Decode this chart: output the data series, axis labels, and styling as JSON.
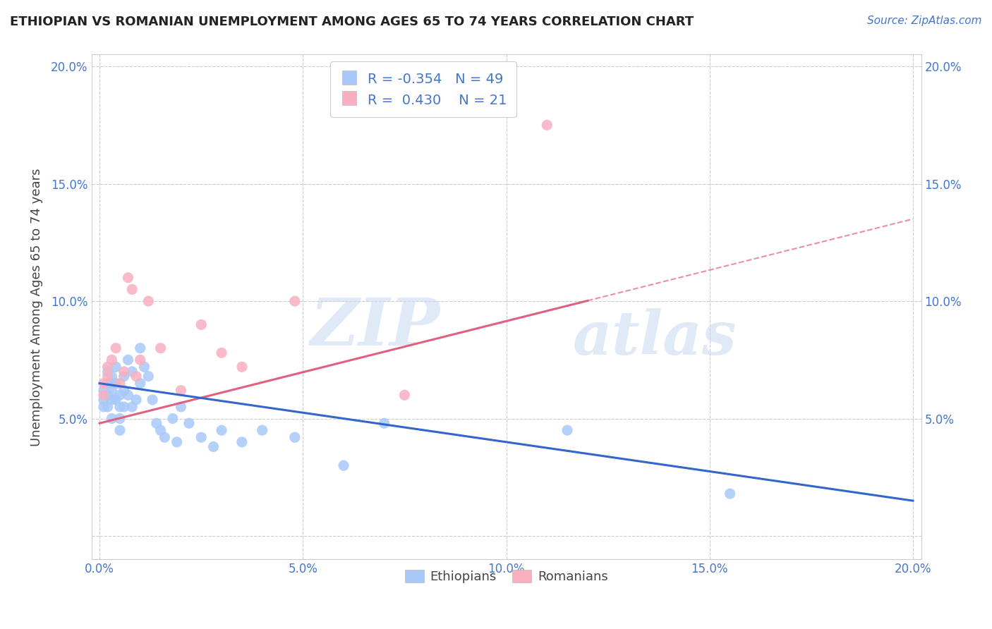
{
  "title": "ETHIOPIAN VS ROMANIAN UNEMPLOYMENT AMONG AGES 65 TO 74 YEARS CORRELATION CHART",
  "source": "Source: ZipAtlas.com",
  "ylabel": "Unemployment Among Ages 65 to 74 years",
  "xlim": [
    -0.002,
    0.202
  ],
  "ylim": [
    -0.01,
    0.205
  ],
  "xticks": [
    0.0,
    0.05,
    0.1,
    0.15,
    0.2
  ],
  "yticks": [
    0.0,
    0.05,
    0.1,
    0.15,
    0.2
  ],
  "xticklabels": [
    "0.0%",
    "5.0%",
    "10.0%",
    "15.0%",
    "20.0%"
  ],
  "yticklabels": [
    "",
    "5.0%",
    "10.0%",
    "15.0%",
    "20.0%"
  ],
  "ethiopian_color": "#a8c8f8",
  "romanian_color": "#f8b0c0",
  "ethiopian_line_color": "#3366cc",
  "romanian_line_color": "#e06080",
  "legend_R_ethiopian": "-0.354",
  "legend_N_ethiopian": "49",
  "legend_R_romanian": "0.430",
  "legend_N_romanian": "21",
  "watermark_text": "ZIP",
  "watermark_text2": "atlas",
  "background_color": "#ffffff",
  "eth_line_x0": 0.0,
  "eth_line_y0": 0.065,
  "eth_line_x1": 0.2,
  "eth_line_y1": 0.015,
  "rom_line_x0": 0.0,
  "rom_line_y0": 0.048,
  "rom_line_x1": 0.2,
  "rom_line_y1": 0.135,
  "rom_line_dashed_x0": 0.12,
  "rom_line_dashed_x1": 0.2,
  "ethiopians_x": [
    0.001,
    0.001,
    0.001,
    0.002,
    0.002,
    0.002,
    0.002,
    0.003,
    0.003,
    0.003,
    0.003,
    0.003,
    0.004,
    0.004,
    0.004,
    0.005,
    0.005,
    0.005,
    0.005,
    0.006,
    0.006,
    0.006,
    0.007,
    0.007,
    0.008,
    0.008,
    0.009,
    0.01,
    0.01,
    0.011,
    0.012,
    0.013,
    0.014,
    0.015,
    0.016,
    0.018,
    0.019,
    0.02,
    0.022,
    0.025,
    0.028,
    0.03,
    0.035,
    0.04,
    0.048,
    0.06,
    0.07,
    0.115,
    0.155
  ],
  "ethiopians_y": [
    0.062,
    0.058,
    0.055,
    0.07,
    0.065,
    0.06,
    0.055,
    0.068,
    0.065,
    0.062,
    0.058,
    0.05,
    0.072,
    0.065,
    0.058,
    0.06,
    0.055,
    0.05,
    0.045,
    0.068,
    0.062,
    0.055,
    0.075,
    0.06,
    0.07,
    0.055,
    0.058,
    0.08,
    0.065,
    0.072,
    0.068,
    0.058,
    0.048,
    0.045,
    0.042,
    0.05,
    0.04,
    0.055,
    0.048,
    0.042,
    0.038,
    0.045,
    0.04,
    0.045,
    0.042,
    0.03,
    0.048,
    0.045,
    0.018
  ],
  "romanians_x": [
    0.001,
    0.001,
    0.002,
    0.002,
    0.003,
    0.004,
    0.005,
    0.006,
    0.007,
    0.008,
    0.009,
    0.01,
    0.012,
    0.015,
    0.02,
    0.025,
    0.03,
    0.035,
    0.048,
    0.075,
    0.11
  ],
  "romanians_y": [
    0.065,
    0.06,
    0.072,
    0.068,
    0.075,
    0.08,
    0.065,
    0.07,
    0.11,
    0.105,
    0.068,
    0.075,
    0.1,
    0.08,
    0.062,
    0.09,
    0.078,
    0.072,
    0.1,
    0.06,
    0.175
  ]
}
